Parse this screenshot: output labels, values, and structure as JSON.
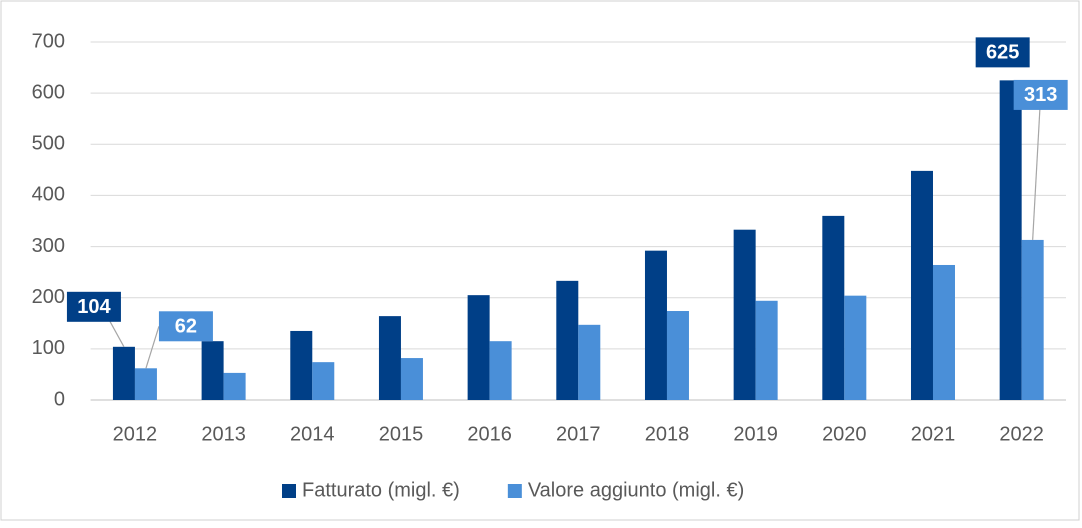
{
  "chart_data": {
    "type": "bar",
    "categories": [
      "2012",
      "2013",
      "2014",
      "2015",
      "2016",
      "2017",
      "2018",
      "2019",
      "2020",
      "2021",
      "2022"
    ],
    "series": [
      {
        "name": "Fatturato (migl. €)",
        "color": "#003f87",
        "values": [
          104,
          115,
          135,
          164,
          205,
          233,
          292,
          333,
          360,
          448,
          625
        ],
        "value_labels": [
          "104",
          null,
          null,
          null,
          null,
          null,
          null,
          null,
          null,
          null,
          "625"
        ]
      },
      {
        "name": "Valore aggiunto (migl. €)",
        "color": "#4a8fd8",
        "values": [
          62,
          53,
          74,
          82,
          115,
          147,
          174,
          194,
          204,
          264,
          313
        ],
        "value_labels": [
          "62",
          null,
          null,
          null,
          null,
          null,
          null,
          null,
          null,
          null,
          "313"
        ]
      }
    ],
    "ylim": [
      0,
      700
    ],
    "yticks": [
      0,
      100,
      200,
      300,
      400,
      500,
      600,
      700
    ],
    "grid": true,
    "legend": "bottom"
  }
}
